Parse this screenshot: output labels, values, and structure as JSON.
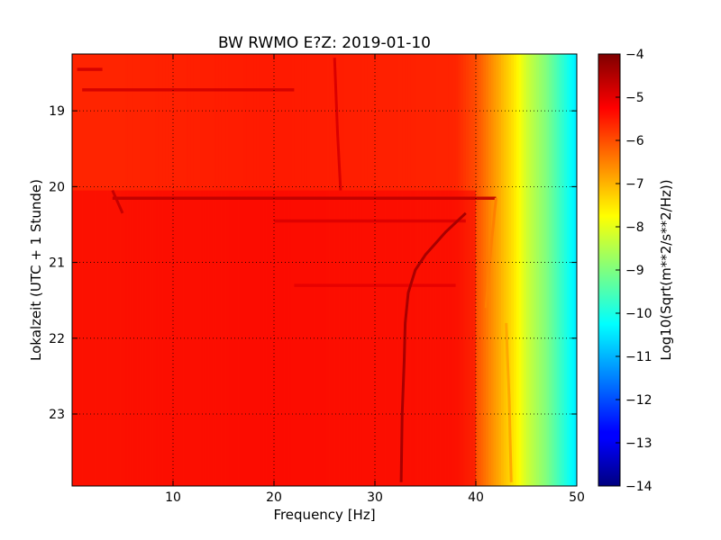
{
  "chart_data": {
    "type": "heatmap",
    "title": "BW RWMO E?Z: 2019-01-10",
    "xlabel": "Frequency [Hz]",
    "ylabel": "Lokalzeit (UTC + 1 Stunde)",
    "xlim": [
      0,
      50
    ],
    "ylim": [
      23.95,
      18.25
    ],
    "x_ticks": [
      10,
      20,
      30,
      40,
      50
    ],
    "y_ticks": [
      19,
      20,
      21,
      22,
      23
    ],
    "grid": true,
    "colormap": "jet",
    "colorbar": {
      "label": "Log10(Sqrt(m**2/s**2/Hz))",
      "range": [
        -14,
        -4
      ],
      "ticks": [
        -4,
        -5,
        -6,
        -7,
        -8,
        -9,
        -10,
        -11,
        -12,
        -13,
        -14
      ]
    },
    "background_level_by_frequency": {
      "x": [
        0,
        5,
        20,
        38,
        40,
        42,
        44,
        45,
        47,
        49,
        50
      ],
      "values": [
        -5.6,
        -5.6,
        -5.5,
        -5.6,
        -6.0,
        -6.8,
        -7.6,
        -8.2,
        -9.0,
        -10.0,
        -10.5
      ]
    },
    "features": [
      {
        "type": "band",
        "freq_range": [
          0,
          50
        ],
        "time_range": [
          20.05,
          23.95
        ],
        "level": -5.2
      },
      {
        "type": "hline",
        "freq_range": [
          1,
          22
        ],
        "time": 18.72,
        "level": -4.8
      },
      {
        "type": "hline",
        "freq_range": [
          0.5,
          3
        ],
        "time": 18.45,
        "level": -4.8
      },
      {
        "type": "hline",
        "freq_range": [
          4,
          42
        ],
        "time": 20.15,
        "level": -4.6
      },
      {
        "type": "hline",
        "freq_range": [
          20,
          39
        ],
        "time": 20.45,
        "level": -4.9
      },
      {
        "type": "hline",
        "freq_range": [
          22,
          38
        ],
        "time": 21.3,
        "level": -5.0
      },
      {
        "type": "track",
        "x": [
          39,
          37,
          35,
          34,
          33.3,
          33,
          32.9,
          32.7,
          32.6
        ],
        "y": [
          20.35,
          20.6,
          20.9,
          21.1,
          21.4,
          21.8,
          22.3,
          23.0,
          23.9
        ],
        "level": -4.4
      },
      {
        "type": "track",
        "x": [
          4,
          4.5,
          5
        ],
        "y": [
          20.05,
          20.2,
          20.35
        ],
        "level": -4.7
      },
      {
        "type": "track",
        "x": [
          26,
          26.3,
          26.6
        ],
        "y": [
          18.3,
          19.3,
          20.05
        ],
        "level": -4.9
      },
      {
        "type": "track",
        "x": [
          42,
          41.5,
          41
        ],
        "y": [
          20.15,
          20.8,
          21.6
        ],
        "level": -6.5
      },
      {
        "type": "track",
        "x": [
          43,
          43.3,
          43.5
        ],
        "y": [
          21.8,
          22.8,
          23.9
        ],
        "level": -6.9
      }
    ]
  }
}
